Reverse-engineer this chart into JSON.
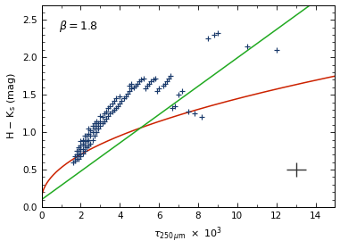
{
  "title_annotation": "β=1.8",
  "xlim": [
    0,
    15000
  ],
  "ylim": [
    0.0,
    2.7
  ],
  "xticks": [
    0,
    2000,
    4000,
    6000,
    8000,
    10000,
    12000,
    14000
  ],
  "xtick_labels": [
    "0",
    "2",
    "4",
    "6",
    "8",
    "10",
    "12",
    "14"
  ],
  "yticks": [
    0.0,
    0.5,
    1.0,
    1.5,
    2.0,
    2.5
  ],
  "data_color": "#1a3a6b",
  "errorbar_color": "#333333",
  "line_green": "#22aa22",
  "line_red": "#cc2200",
  "red_line_a": 0.1,
  "red_line_b": 0.01245,
  "green_line_a": 0.1,
  "green_line_b": 0.000185,
  "errorbar_x": 13000,
  "errorbar_y": 0.5,
  "errorbar_xerr": 500,
  "errorbar_yerr": 0.1,
  "background_color": "#ffffff",
  "scatter_x": [
    1600,
    1700,
    1700,
    1800,
    1800,
    1800,
    1900,
    1900,
    1900,
    1900,
    2000,
    2000,
    2000,
    2000,
    2000,
    2100,
    2100,
    2100,
    2100,
    2200,
    2200,
    2200,
    2200,
    2300,
    2300,
    2300,
    2400,
    2400,
    2400,
    2400,
    2500,
    2500,
    2500,
    2600,
    2600,
    2600,
    2700,
    2700,
    2700,
    2800,
    2800,
    2800,
    2900,
    2900,
    3000,
    3000,
    3000,
    3100,
    3100,
    3200,
    3200,
    3300,
    3300,
    3400,
    3400,
    3500,
    3500,
    3600,
    3600,
    3700,
    3700,
    3800,
    3800,
    3900,
    4000,
    4000,
    4100,
    4200,
    4300,
    4400,
    4500,
    4500,
    4600,
    4600,
    4700,
    4800,
    4900,
    5000,
    5100,
    5200,
    5300,
    5400,
    5500,
    5600,
    5700,
    5800,
    5900,
    6000,
    6200,
    6300,
    6400,
    6500,
    6600,
    6700,
    6800,
    7000,
    7200,
    7500,
    7800,
    8200,
    8500,
    8800,
    9000,
    10500,
    12000
  ],
  "scatter_y": [
    0.6,
    0.62,
    0.68,
    0.65,
    0.7,
    0.75,
    0.65,
    0.7,
    0.75,
    0.8,
    0.68,
    0.72,
    0.78,
    0.82,
    0.88,
    0.72,
    0.78,
    0.85,
    0.9,
    0.75,
    0.82,
    0.88,
    0.95,
    0.8,
    0.88,
    0.95,
    0.82,
    0.9,
    0.98,
    1.05,
    0.85,
    0.95,
    1.02,
    0.9,
    1.0,
    1.08,
    0.95,
    1.05,
    1.12,
    1.0,
    1.08,
    1.15,
    1.05,
    1.12,
    1.08,
    1.15,
    1.22,
    1.12,
    1.2,
    1.15,
    1.25,
    1.18,
    1.28,
    1.22,
    1.32,
    1.25,
    1.35,
    1.28,
    1.38,
    1.3,
    1.42,
    1.32,
    1.45,
    1.35,
    1.38,
    1.48,
    1.42,
    1.45,
    1.48,
    1.52,
    1.55,
    1.62,
    1.58,
    1.65,
    1.6,
    1.62,
    1.65,
    1.68,
    1.7,
    1.72,
    1.58,
    1.62,
    1.65,
    1.68,
    1.7,
    1.72,
    1.55,
    1.58,
    1.62,
    1.65,
    1.68,
    1.72,
    1.75,
    1.32,
    1.35,
    1.5,
    1.55,
    1.28,
    1.25,
    1.2,
    2.25,
    2.3,
    2.32,
    2.15,
    2.1
  ]
}
